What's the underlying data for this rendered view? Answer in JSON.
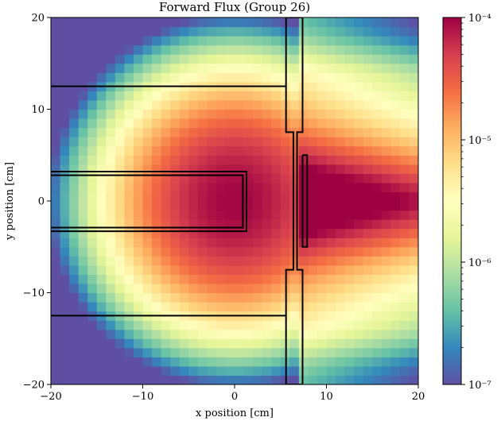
{
  "chart_data": {
    "type": "heatmap",
    "title": "Forward Flux (Group 26)",
    "xlabel": "x position [cm]",
    "ylabel": "y position [cm]",
    "xlim": [
      -20,
      20
    ],
    "ylim": [
      -20,
      20
    ],
    "x_ticks": [
      -20,
      -10,
      0,
      10,
      20
    ],
    "y_ticks": [
      -20,
      -10,
      0,
      10,
      20
    ],
    "x_tick_labels": [
      "−20",
      "−10",
      "0",
      "10",
      "20"
    ],
    "y_tick_labels": [
      "−20",
      "−10",
      "0",
      "10",
      "20"
    ],
    "grid": {
      "nx": 40,
      "ny": 40,
      "cell_size_cm": 1
    },
    "colorbar": {
      "scale": "log",
      "range": [
        1e-07,
        0.0001
      ],
      "colormap": "Spectral_r",
      "tick_values": [
        1e-07,
        1e-06,
        1e-05,
        0.0001
      ],
      "tick_labels": [
        "10⁻⁷",
        "10⁻⁶",
        "10⁻⁵",
        "10⁻⁴"
      ]
    },
    "flux_model": {
      "peak_value": 9.5e-05,
      "peak_location_cm": [
        0,
        0
      ],
      "falloff_radius_cm": 19,
      "falloff_decades": 2.6,
      "right_side_offset_cm": 8,
      "right_side_floor": 1.5e-07
    },
    "geometry_outlines": [
      {
        "name": "upper-shield-line",
        "points": [
          [
            -20,
            12.5
          ],
          [
            5.6,
            12.5
          ]
        ]
      },
      {
        "name": "lower-shield-line",
        "points": [
          [
            -20,
            -12.5
          ],
          [
            5.6,
            -12.5
          ]
        ]
      },
      {
        "name": "inner-rod-outer",
        "points": [
          [
            -20,
            3.2
          ],
          [
            1.3,
            3.2
          ],
          [
            1.3,
            -3.3
          ],
          [
            -20,
            -3.3
          ]
        ]
      },
      {
        "name": "inner-rod-inner",
        "points": [
          [
            -20,
            2.8
          ],
          [
            0.9,
            2.8
          ],
          [
            0.9,
            -2.9
          ],
          [
            -20,
            -2.9
          ]
        ]
      },
      {
        "name": "stepped-wall",
        "points": [
          [
            5.6,
            20
          ],
          [
            5.6,
            7.5
          ],
          [
            6.4,
            7.5
          ],
          [
            6.4,
            -7.5
          ],
          [
            5.6,
            -7.5
          ],
          [
            5.6,
            -20
          ],
          [
            7.4,
            -20
          ],
          [
            7.4,
            -7.5
          ],
          [
            6.8,
            -7.5
          ],
          [
            6.8,
            7.5
          ],
          [
            7.4,
            7.5
          ],
          [
            7.4,
            20
          ],
          [
            5.6,
            20
          ]
        ]
      },
      {
        "name": "detector-slab",
        "points": [
          [
            7.4,
            5
          ],
          [
            7.4,
            -5
          ],
          [
            7.9,
            -5
          ],
          [
            7.9,
            5
          ],
          [
            7.4,
            5
          ]
        ]
      }
    ]
  }
}
